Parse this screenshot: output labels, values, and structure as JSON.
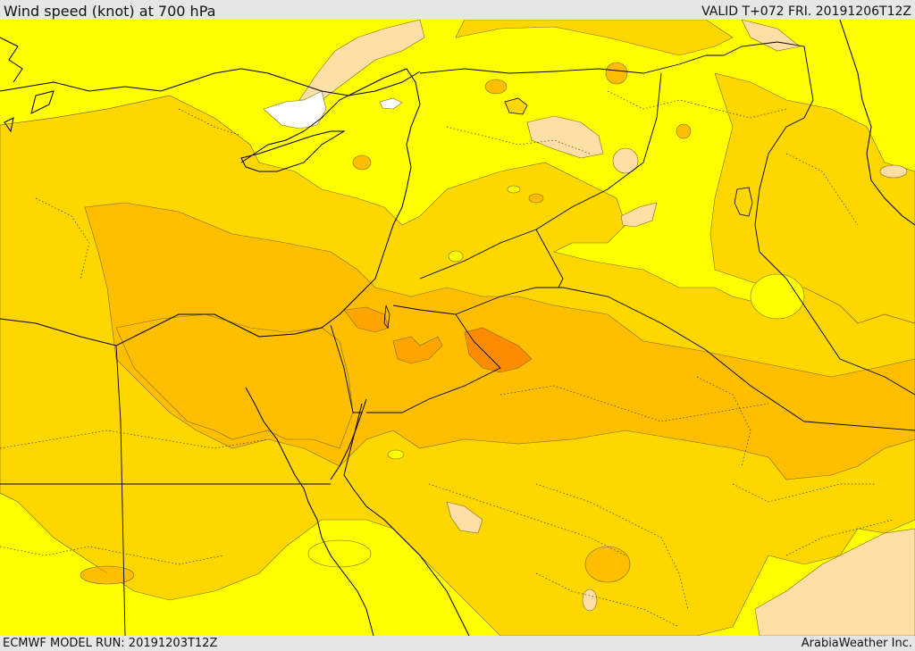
{
  "header": {
    "title": "Wind speed (knot) at 700 hPa",
    "valid_time": "VALID T+072 FRI. 20191206T12Z"
  },
  "footer": {
    "model_run": "ECMWF MODEL RUN: 20191203T12Z",
    "credit": "ArabiaWeather Inc."
  },
  "colors": {
    "background": "#e6e6e6",
    "band_lowest": "#ffff00",
    "band_low": "#ffd700",
    "band_mid": "#ffbf00",
    "band_high": "#ffa500",
    "band_highest": "#ff8c00",
    "band_light": "#ffdfa6",
    "calm": "#ffffff",
    "coastline": "#000000",
    "contour": "#7a6a20"
  }
}
